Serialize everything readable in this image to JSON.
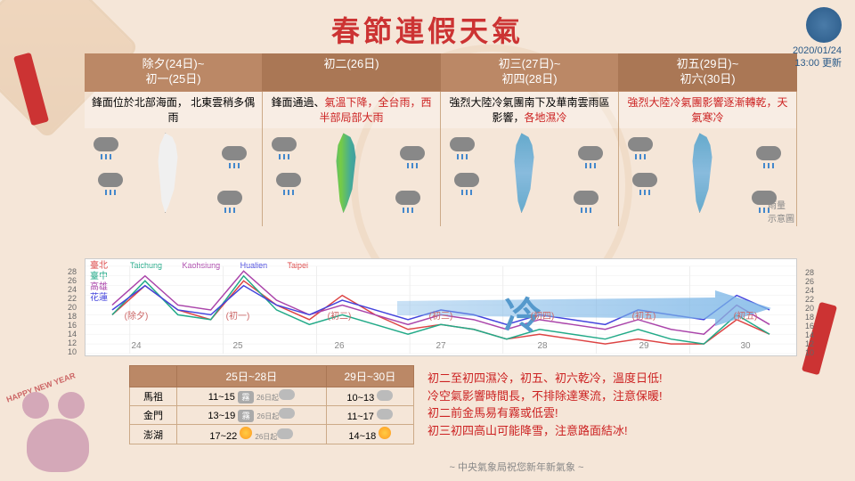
{
  "title": "春節連假天氣",
  "update": {
    "date": "2020/01/24",
    "time": "13:00 更新"
  },
  "periods": [
    {
      "label": "除夕(24日)~\n初一(25日)",
      "desc_black": "鋒面位於北部海面，\n北東雲稍多偶雨",
      "desc_red": ""
    },
    {
      "label": "初二(26日)",
      "desc_black": "鋒面通過、",
      "desc_red": "氣溫下降，全台雨，西半部局部大雨"
    },
    {
      "label": "初三(27日)~\n初四(28日)",
      "desc_black": "強烈大陸冷氣團南下及華南雲雨區影響，",
      "desc_red": "各地濕冷"
    },
    {
      "label": "初五(29日)~\n初六(30日)",
      "desc_black": "",
      "desc_red": "強烈大陸冷氣團影響逐漸轉乾，天氣寒冷"
    }
  ],
  "rain_label": "雨量\n示意圖",
  "chart": {
    "cities": [
      {
        "zh": "臺北",
        "en": "Taipei",
        "color": "#dd4444"
      },
      {
        "zh": "臺中",
        "en": "Taichung",
        "color": "#22aa88"
      },
      {
        "zh": "高雄",
        "en": "Kaohsiung",
        "color": "#aa44aa"
      },
      {
        "zh": "花蓮",
        "en": "Hualien",
        "color": "#4444dd"
      }
    ],
    "y_ticks": [
      28,
      26,
      24,
      22,
      20,
      18,
      16,
      14,
      12,
      10
    ],
    "days": [
      "24",
      "25",
      "26",
      "27",
      "28",
      "29",
      "30"
    ],
    "lunar": [
      "(除夕)",
      "(初一)",
      "(初二)",
      "(初三)",
      "(初四)",
      "(初五)",
      "(初五)"
    ],
    "cold_char": "冷",
    "series": {
      "taipei": [
        18,
        24,
        19,
        17,
        25,
        20,
        17,
        22,
        18,
        15,
        16,
        15,
        13,
        14,
        13,
        12,
        13,
        12,
        12,
        17,
        14
      ],
      "taichung": [
        18,
        25,
        18,
        17,
        26,
        19,
        16,
        18,
        16,
        14,
        16,
        15,
        13,
        15,
        14,
        13,
        15,
        13,
        12,
        18,
        14
      ],
      "kaohsiung": [
        20,
        26,
        20,
        19,
        27,
        21,
        18,
        20,
        18,
        16,
        18,
        17,
        15,
        17,
        16,
        15,
        17,
        15,
        14,
        20,
        16
      ],
      "hualien": [
        19,
        24,
        19,
        18,
        24,
        20,
        18,
        21,
        19,
        17,
        19,
        18,
        16,
        18,
        17,
        16,
        19,
        18,
        17,
        22,
        19
      ]
    }
  },
  "islands": {
    "header": [
      "",
      "25日~28日",
      "29日~30日"
    ],
    "rows": [
      {
        "name": "馬祖",
        "r1": "11~15",
        "r1_note": "26日起",
        "r2": "10~13"
      },
      {
        "name": "金門",
        "r1": "13~19",
        "r1_note": "26日起",
        "r2": "11~17"
      },
      {
        "name": "澎湖",
        "r1": "17~22",
        "r1_note": "26日起",
        "r2": "14~18"
      }
    ]
  },
  "notes": [
    "初二至初四濕冷，初五、初六乾冷，溫度日低!",
    "冷空氣影響時間長，不排除達寒流，注意保暖!",
    "初二前金馬易有霧或低雲!",
    "初三初四高山可能降雪，注意路面結冰!"
  ],
  "footer": "~ 中央氣象局祝您新年新氣象 ~",
  "happy": "HAPPY NEW YEAR",
  "colors": {
    "title": "#cc3333",
    "header_bg1": "#bb8866",
    "header_bg2": "#aa7755",
    "red_text": "#cc2222",
    "bg": "#f5e6d8"
  }
}
